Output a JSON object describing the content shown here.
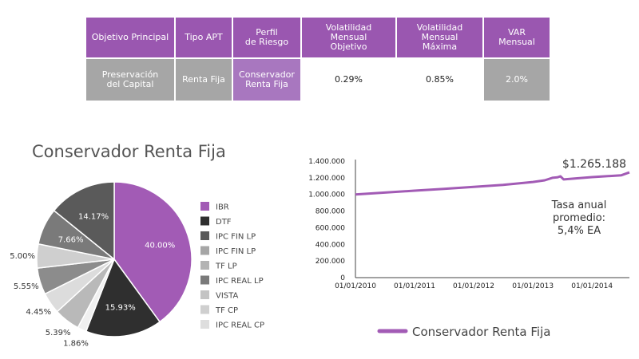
{
  "table": {
    "headers": [
      "Objetivo Principal",
      "Tipo APT",
      "Perfil\nde Riesgo",
      "Volatilidad\nMensual\nObjetivo",
      "Volatilidad\nMensual\nMáxima",
      "VAR\nMensual"
    ],
    "row": [
      "Preservación\ndel Capital",
      "Renta Fija",
      "Conservador\nRenta Fija",
      "0.29%",
      "0.85%",
      "2.0%"
    ]
  },
  "chart_data": [
    {
      "type": "pie",
      "title": "Conservador Renta Fija",
      "legend_position": "right",
      "slices": [
        {
          "label": "IBR",
          "value": 40.0,
          "display": "40.00%",
          "color": "#a25bb5"
        },
        {
          "label": "DTF",
          "value": 15.93,
          "display": "15.93%",
          "color": "#2f2f2f"
        },
        {
          "label": "IPC FIN LP",
          "value": 1.86,
          "display": "1.86%",
          "color": "#f0f0f0"
        },
        {
          "label": "IPC FIN LP",
          "value": 5.39,
          "display": "5.39%",
          "color": "#b9b9b9"
        },
        {
          "label": "TF LP",
          "value": 4.45,
          "display": "4.45%",
          "color": "#dcdcdc"
        },
        {
          "label": "IPC REAL LP",
          "value": 5.55,
          "display": "5.55%",
          "color": "#8c8c8c"
        },
        {
          "label": "VISTA",
          "value": 5.0,
          "display": "5.00%",
          "color": "#cfcfcf"
        },
        {
          "label": "TF CP",
          "value": 7.66,
          "display": "7.66%",
          "color": "#7a7a7a"
        },
        {
          "label": "IPC REAL CP",
          "value": 14.17,
          "display": "14.17%",
          "color": "#5a5a5a"
        }
      ],
      "legend": [
        {
          "label": "IBR",
          "color": "#a25bb5"
        },
        {
          "label": "DTF",
          "color": "#2f2f2f"
        },
        {
          "label": "IPC FIN LP",
          "color": "#5a5a5a"
        },
        {
          "label": "IPC FIN LP",
          "color": "#a6a6a6"
        },
        {
          "label": "TF LP",
          "color": "#b3b3b3"
        },
        {
          "label": "IPC REAL LP",
          "color": "#7a7a7a"
        },
        {
          "label": "VISTA",
          "color": "#c4c4c4"
        },
        {
          "label": "TF CP",
          "color": "#cfcfcf"
        },
        {
          "label": "IPC REAL CP",
          "color": "#dedede"
        }
      ]
    },
    {
      "type": "line",
      "series": [
        {
          "name": "Conservador Renta Fija",
          "color": "#a25bb5",
          "x": [
            "2010-01-01",
            "2010-07-01",
            "2011-01-01",
            "2011-07-01",
            "2012-01-01",
            "2012-07-01",
            "2013-01-01",
            "2013-03-15",
            "2013-05-01",
            "2013-06-01",
            "2013-06-20",
            "2013-07-10",
            "2014-01-01",
            "2014-07-01",
            "2014-08-20"
          ],
          "y": [
            1000000,
            1022000,
            1045000,
            1067000,
            1090000,
            1115000,
            1150000,
            1170000,
            1200000,
            1205000,
            1218000,
            1180000,
            1208000,
            1230000,
            1265188
          ]
        }
      ],
      "x_ticks": [
        "01/01/2010",
        "01/01/2011",
        "01/01/2012",
        "01/01/2013",
        "01/01/2014"
      ],
      "y_ticks": [
        "0",
        "200.000",
        "400.000",
        "600.000",
        "800.000",
        "1.000.000",
        "1.200.000",
        "1.400.000"
      ],
      "ylim": [
        0,
        1400000
      ],
      "xlim": [
        "2010-01-01",
        "2014-08-20"
      ],
      "annotations": {
        "end_value": "$1.265.188",
        "note": "Tasa anual\npromedio:\n5,4% EA"
      },
      "legend_label": "Conservador Renta Fija"
    }
  ]
}
